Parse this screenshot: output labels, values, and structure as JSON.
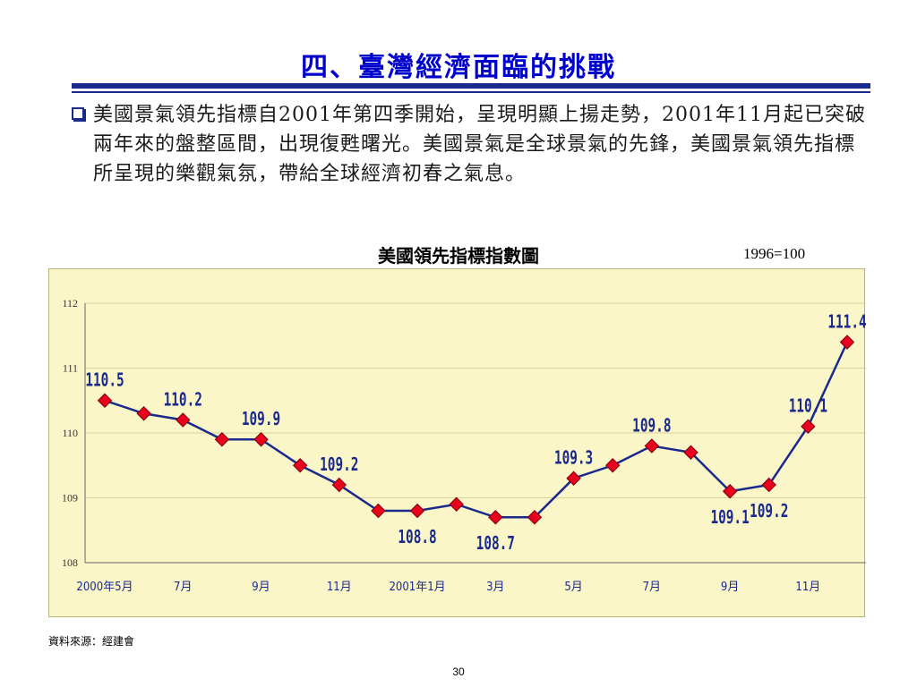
{
  "slide": {
    "title": "四、臺灣經濟面臨的挑戰",
    "paragraph": "美國景氣領先指標自2001年第四季開始，呈現明顯上揚走勢，2001年11月起已突破兩年來的盤整區間，出現復甦曙光。美國景氣是全球景氣的先鋒，美國景氣領先指標所呈現的樂觀氣氛，帶給全球經濟初春之氣息。",
    "source": "資料來源：經建會",
    "page_number": "30"
  },
  "colors": {
    "title": "#0000cc",
    "rule": "#1a2a8c",
    "plot_background": "#fbf6c8",
    "line": "#1a2a8c",
    "marker": "#e8001c",
    "label": "#1a2a8c"
  },
  "chart_data": {
    "type": "line",
    "title": "美國領先指標指數圖",
    "base_note": "1996=100",
    "x": [
      "2000/5",
      "2000/6",
      "2000/7",
      "2000/8",
      "2000/9",
      "2000/10",
      "2000/11",
      "2000/12",
      "2001/1",
      "2001/2",
      "2001/3",
      "2001/4",
      "2001/5",
      "2001/6",
      "2001/7",
      "2001/8",
      "2001/9",
      "2001/10",
      "2001/11",
      "2001/12"
    ],
    "x_tick_labels": [
      "2000年5月",
      "7月",
      "9月",
      "11月",
      "2001年1月",
      "3月",
      "5月",
      "7月",
      "9月",
      "11月"
    ],
    "x_tick_every": 2,
    "values": [
      110.5,
      110.3,
      110.2,
      109.9,
      109.9,
      109.5,
      109.2,
      108.8,
      108.8,
      108.9,
      108.7,
      108.7,
      109.3,
      109.5,
      109.8,
      109.7,
      109.1,
      109.2,
      110.1,
      111.4
    ],
    "y_ticks": [
      108,
      109,
      110,
      111,
      112
    ],
    "ylim": [
      108,
      112
    ],
    "grid": "horizontal",
    "data_labels": [
      {
        "index": 0,
        "text": "110.5",
        "placement": "above"
      },
      {
        "index": 2,
        "text": "110.2",
        "placement": "above"
      },
      {
        "index": 4,
        "text": "109.9",
        "placement": "above"
      },
      {
        "index": 6,
        "text": "109.2",
        "placement": "above"
      },
      {
        "index": 8,
        "text": "108.8",
        "placement": "below"
      },
      {
        "index": 10,
        "text": "108.7",
        "placement": "below"
      },
      {
        "index": 12,
        "text": "109.3",
        "placement": "above"
      },
      {
        "index": 14,
        "text": "109.8",
        "placement": "above"
      },
      {
        "index": 16,
        "text": "109.1",
        "placement": "below"
      },
      {
        "index": 17,
        "text": "109.2",
        "placement": "below"
      },
      {
        "index": 18,
        "text": "110.1",
        "placement": "above"
      },
      {
        "index": 19,
        "text": "111.4",
        "placement": "above"
      }
    ]
  }
}
